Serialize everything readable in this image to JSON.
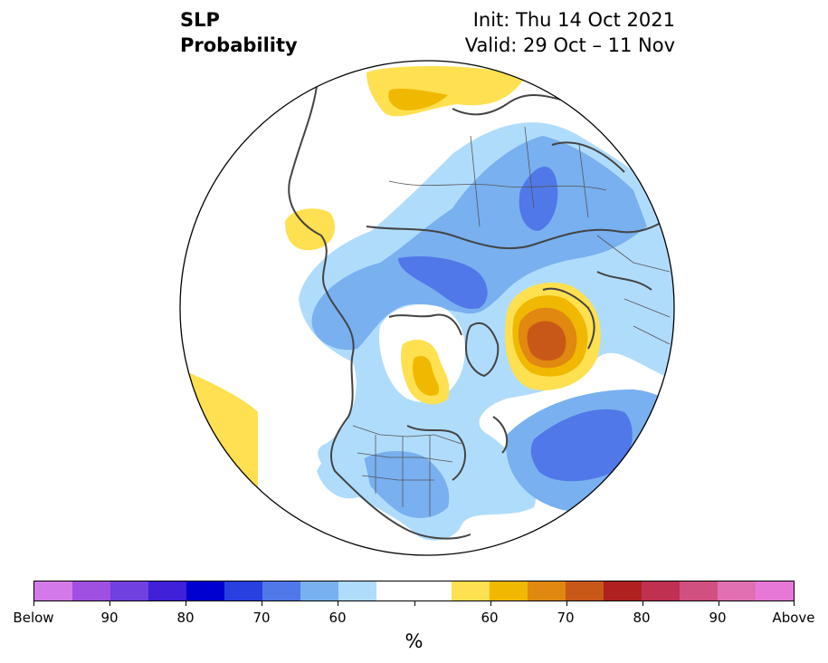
{
  "title": {
    "left_line1": "SLP",
    "left_line2": "Probability",
    "right_line1": "Init: Thu 14 Oct 2021",
    "right_line2": "Valid: 29 Oct – 11 Nov"
  },
  "colorbar": {
    "colors": [
      "#d47ae8",
      "#a050e0",
      "#7040e0",
      "#4020d8",
      "#0000d0",
      "#2840e0",
      "#5078e8",
      "#78b0f0",
      "#b0dcfc",
      "#ffffff",
      "#ffffff",
      "#ffe050",
      "#f0b800",
      "#e08810",
      "#c85818",
      "#b02020",
      "#c03050",
      "#d05080",
      "#e070b0",
      "#e878d8"
    ],
    "labels": [
      "Below",
      "90",
      "80",
      "70",
      "60",
      "60",
      "70",
      "80",
      "90",
      "Above"
    ],
    "unit": "%"
  },
  "map": {
    "fills": {
      "below_lightest": "#b0dcfc",
      "below_light": "#78b0f0",
      "below_mid": "#5078e8",
      "above_light": "#ffe050",
      "above_mid": "#f0b800",
      "above_strong": "#e08810",
      "above_stronger": "#c85818"
    }
  }
}
